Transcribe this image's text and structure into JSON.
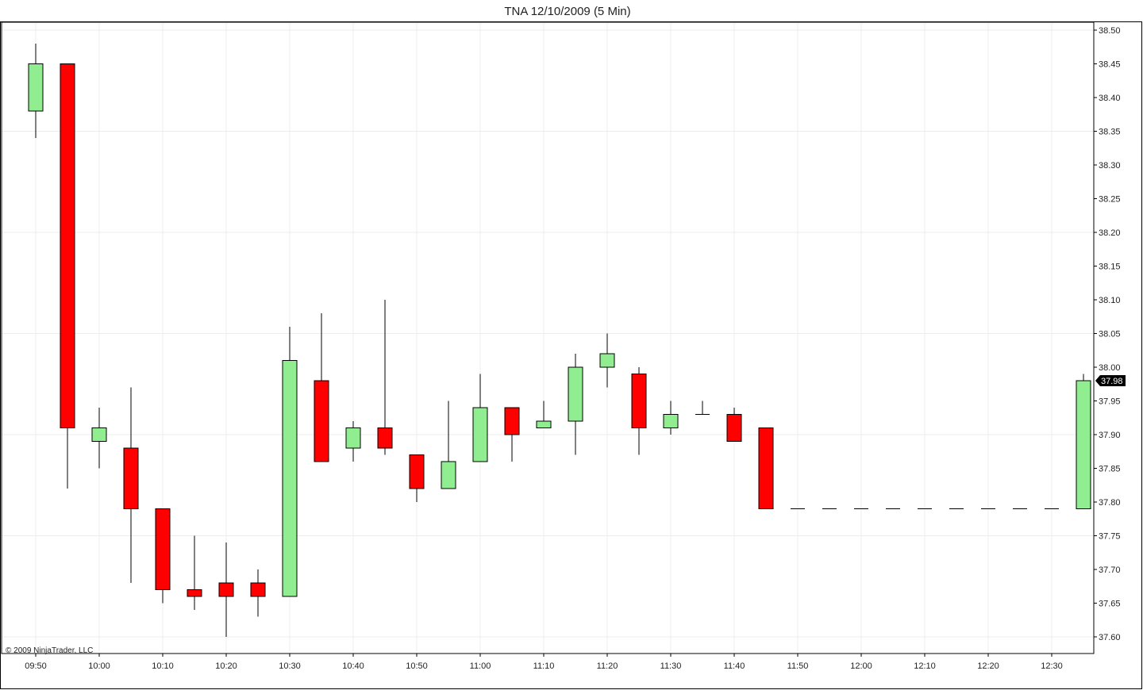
{
  "chart_data": {
    "type": "candlestick",
    "title": "TNA  12/10/2009 (5 Min)",
    "copyright": "© 2009 NinjaTrader, LLC",
    "last_price_label": "37.98",
    "ylim": [
      37.6,
      38.5
    ],
    "y_ticks": [
      "38.50",
      "38.45",
      "38.40",
      "38.35",
      "38.30",
      "38.25",
      "38.20",
      "38.15",
      "38.10",
      "38.05",
      "38.00",
      "37.95",
      "37.90",
      "37.85",
      "37.80",
      "37.75",
      "37.70",
      "37.65",
      "37.60"
    ],
    "x_ticks": [
      "09:50",
      "10:00",
      "10:10",
      "10:20",
      "10:30",
      "10:40",
      "10:50",
      "11:00",
      "11:10",
      "11:20",
      "11:30",
      "11:40",
      "11:50",
      "12:00",
      "12:10",
      "12:20",
      "12:30"
    ],
    "grid": true,
    "up_color": "#90ee90",
    "down_color": "#ff0000",
    "candles": [
      {
        "time": "09:50",
        "open": 38.38,
        "high": 38.48,
        "low": 38.34,
        "close": 38.45
      },
      {
        "time": "09:55",
        "open": 38.45,
        "high": 38.45,
        "low": 37.82,
        "close": 37.91
      },
      {
        "time": "10:00",
        "open": 37.89,
        "high": 37.94,
        "low": 37.85,
        "close": 37.91
      },
      {
        "time": "10:05",
        "open": 37.88,
        "high": 37.97,
        "low": 37.68,
        "close": 37.79
      },
      {
        "time": "10:10",
        "open": 37.79,
        "high": 37.79,
        "low": 37.65,
        "close": 37.67
      },
      {
        "time": "10:15",
        "open": 37.67,
        "high": 37.75,
        "low": 37.64,
        "close": 37.66
      },
      {
        "time": "10:20",
        "open": 37.68,
        "high": 37.74,
        "low": 37.6,
        "close": 37.66
      },
      {
        "time": "10:25",
        "open": 37.68,
        "high": 37.7,
        "low": 37.63,
        "close": 37.66
      },
      {
        "time": "10:30",
        "open": 37.66,
        "high": 38.06,
        "low": 37.66,
        "close": 38.01
      },
      {
        "time": "10:35",
        "open": 37.98,
        "high": 38.08,
        "low": 37.86,
        "close": 37.86
      },
      {
        "time": "10:40",
        "open": 37.88,
        "high": 37.92,
        "low": 37.86,
        "close": 37.91
      },
      {
        "time": "10:45",
        "open": 37.91,
        "high": 38.1,
        "low": 37.87,
        "close": 37.88
      },
      {
        "time": "10:50",
        "open": 37.87,
        "high": 37.87,
        "low": 37.8,
        "close": 37.82
      },
      {
        "time": "10:55",
        "open": 37.82,
        "high": 37.95,
        "low": 37.82,
        "close": 37.86
      },
      {
        "time": "11:00",
        "open": 37.86,
        "high": 37.99,
        "low": 37.86,
        "close": 37.94
      },
      {
        "time": "11:05",
        "open": 37.94,
        "high": 37.94,
        "low": 37.86,
        "close": 37.9
      },
      {
        "time": "11:10",
        "open": 37.91,
        "high": 37.95,
        "low": 37.91,
        "close": 37.92
      },
      {
        "time": "11:15",
        "open": 37.92,
        "high": 38.02,
        "low": 37.87,
        "close": 38.0
      },
      {
        "time": "11:20",
        "open": 38.0,
        "high": 38.05,
        "low": 37.97,
        "close": 38.02
      },
      {
        "time": "11:25",
        "open": 37.99,
        "high": 38.0,
        "low": 37.87,
        "close": 37.91
      },
      {
        "time": "11:30",
        "open": 37.91,
        "high": 37.95,
        "low": 37.9,
        "close": 37.93
      },
      {
        "time": "11:35",
        "open": 37.93,
        "high": 37.95,
        "low": 37.93,
        "close": 37.93
      },
      {
        "time": "11:40",
        "open": 37.93,
        "high": 37.94,
        "low": 37.89,
        "close": 37.89
      },
      {
        "time": "11:45",
        "open": 37.91,
        "high": 37.91,
        "low": 37.79,
        "close": 37.79
      },
      {
        "time": "11:50",
        "open": 37.79,
        "high": 37.79,
        "low": 37.79,
        "close": 37.79
      },
      {
        "time": "11:55",
        "open": 37.79,
        "high": 37.79,
        "low": 37.79,
        "close": 37.79
      },
      {
        "time": "12:00",
        "open": 37.79,
        "high": 37.79,
        "low": 37.79,
        "close": 37.79
      },
      {
        "time": "12:05",
        "open": 37.79,
        "high": 37.79,
        "low": 37.79,
        "close": 37.79
      },
      {
        "time": "12:10",
        "open": 37.79,
        "high": 37.79,
        "low": 37.79,
        "close": 37.79
      },
      {
        "time": "12:15",
        "open": 37.79,
        "high": 37.79,
        "low": 37.79,
        "close": 37.79
      },
      {
        "time": "12:20",
        "open": 37.79,
        "high": 37.79,
        "low": 37.79,
        "close": 37.79
      },
      {
        "time": "12:25",
        "open": 37.79,
        "high": 37.79,
        "low": 37.79,
        "close": 37.79
      },
      {
        "time": "12:30",
        "open": 37.79,
        "high": 37.79,
        "low": 37.79,
        "close": 37.79
      },
      {
        "time": "12:35",
        "open": 37.79,
        "high": 37.99,
        "low": 37.79,
        "close": 37.98
      }
    ]
  }
}
